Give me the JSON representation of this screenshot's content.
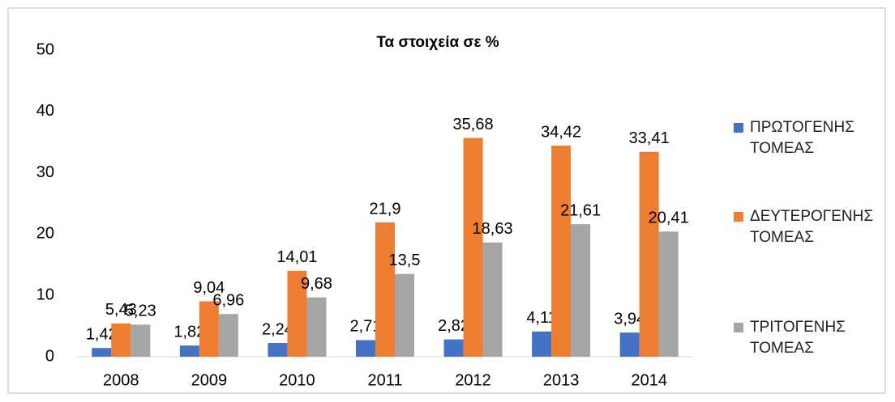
{
  "chart_data": {
    "type": "bar",
    "title": "Τα στοιχεία σε %",
    "categories": [
      "2008",
      "2009",
      "2010",
      "2011",
      "2012",
      "2013",
      "2014"
    ],
    "series": [
      {
        "name": "ΠΡΩΤΟΓΕΝΗΣ ΤΟΜΕΑΣ",
        "color": "#4472c4",
        "values": [
          1.42,
          1.82,
          2.24,
          2.71,
          2.82,
          4.11,
          3.94
        ],
        "value_labels": [
          "1,42",
          "1,82",
          "2,24",
          "2,71",
          "2,82",
          "4,11",
          "3,94"
        ]
      },
      {
        "name": "ΔΕΥΤΕΡΟΓΕΝΗΣ ΤΟΜΕΑΣ",
        "color": "#ed7d31",
        "values": [
          5.43,
          9.04,
          14.01,
          21.9,
          35.68,
          34.42,
          33.41
        ],
        "value_labels": [
          "5,43",
          "9,04",
          "14,01",
          "21,9",
          "35,68",
          "34,42",
          "33,41"
        ]
      },
      {
        "name": "ΤΡΙΤΟΓΕΝΗΣ ΤΟΜΕΑΣ",
        "color": "#a5a5a5",
        "values": [
          5.23,
          6.96,
          9.68,
          13.5,
          18.63,
          21.61,
          20.41
        ],
        "value_labels": [
          "5,23",
          "6,96",
          "9,68",
          "13,5",
          "18,63",
          "21,61",
          "20,41"
        ]
      }
    ],
    "ylim": [
      0,
      50
    ],
    "yticks": [
      0,
      10,
      20,
      30,
      40,
      50
    ],
    "grid": false,
    "legend": "right"
  }
}
